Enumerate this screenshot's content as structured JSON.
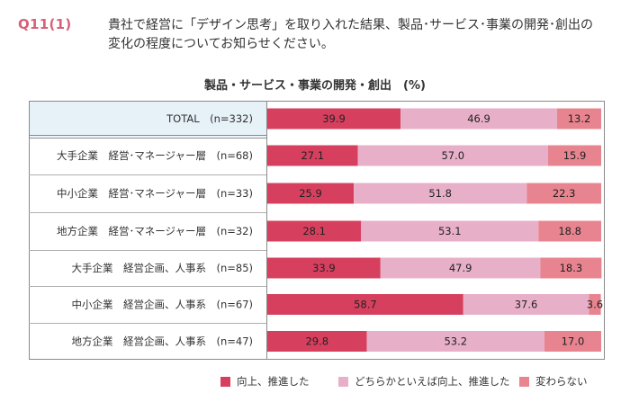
{
  "question": {
    "number": "Q11(1)",
    "text_line1": "貴社で経営に「デザイン思考」を取り入れた結果、製品･サービス･事業の開発･創出の",
    "text_line2": "変化の程度についてお知らせください。"
  },
  "chart_data": {
    "type": "bar",
    "orientation": "horizontal",
    "stacked": true,
    "percent_stacked": true,
    "title": "製品・サービス・事業の開発・創出　(%)",
    "categories": [
      "TOTAL　(n=332)",
      "大手企業　経営･マネージャー層　(n=68)",
      "中小企業　経営･マネージャー層　(n=33)",
      "地方企業　経営･マネージャー層　(n=32)",
      "大手企業　経営企画、人事系　(n=85)",
      "中小企業　経営企画、人事系　(n=67)",
      "地方企業　経営企画、人事系　(n=47)"
    ],
    "series": [
      {
        "name": "向上、推進した",
        "color": "#d6405e",
        "values": [
          39.9,
          27.1,
          25.9,
          28.1,
          33.9,
          58.7,
          29.8
        ]
      },
      {
        "name": "どちらかといえば向上、推進した",
        "color": "#e8b0c8",
        "values": [
          46.9,
          57.0,
          51.8,
          53.1,
          47.9,
          37.6,
          53.2
        ]
      },
      {
        "name": "変わらない",
        "color": "#e8848f",
        "values": [
          13.2,
          15.9,
          22.3,
          18.8,
          18.3,
          3.6,
          17.0
        ]
      }
    ],
    "value_labels": [
      [
        "39.9",
        "46.9",
        "13.2"
      ],
      [
        "27.1",
        "57.0",
        "15.9"
      ],
      [
        "25.9",
        "51.8",
        "22.3"
      ],
      [
        "28.1",
        "53.1",
        "18.8"
      ],
      [
        "33.9",
        "47.9",
        "18.3"
      ],
      [
        "58.7",
        "37.6",
        "3.6"
      ],
      [
        "29.8",
        "53.2",
        "17.0"
      ]
    ],
    "xlim": [
      0,
      100
    ],
    "legend_position": "bottom",
    "highlight_row_color": "#e6f1f8"
  }
}
